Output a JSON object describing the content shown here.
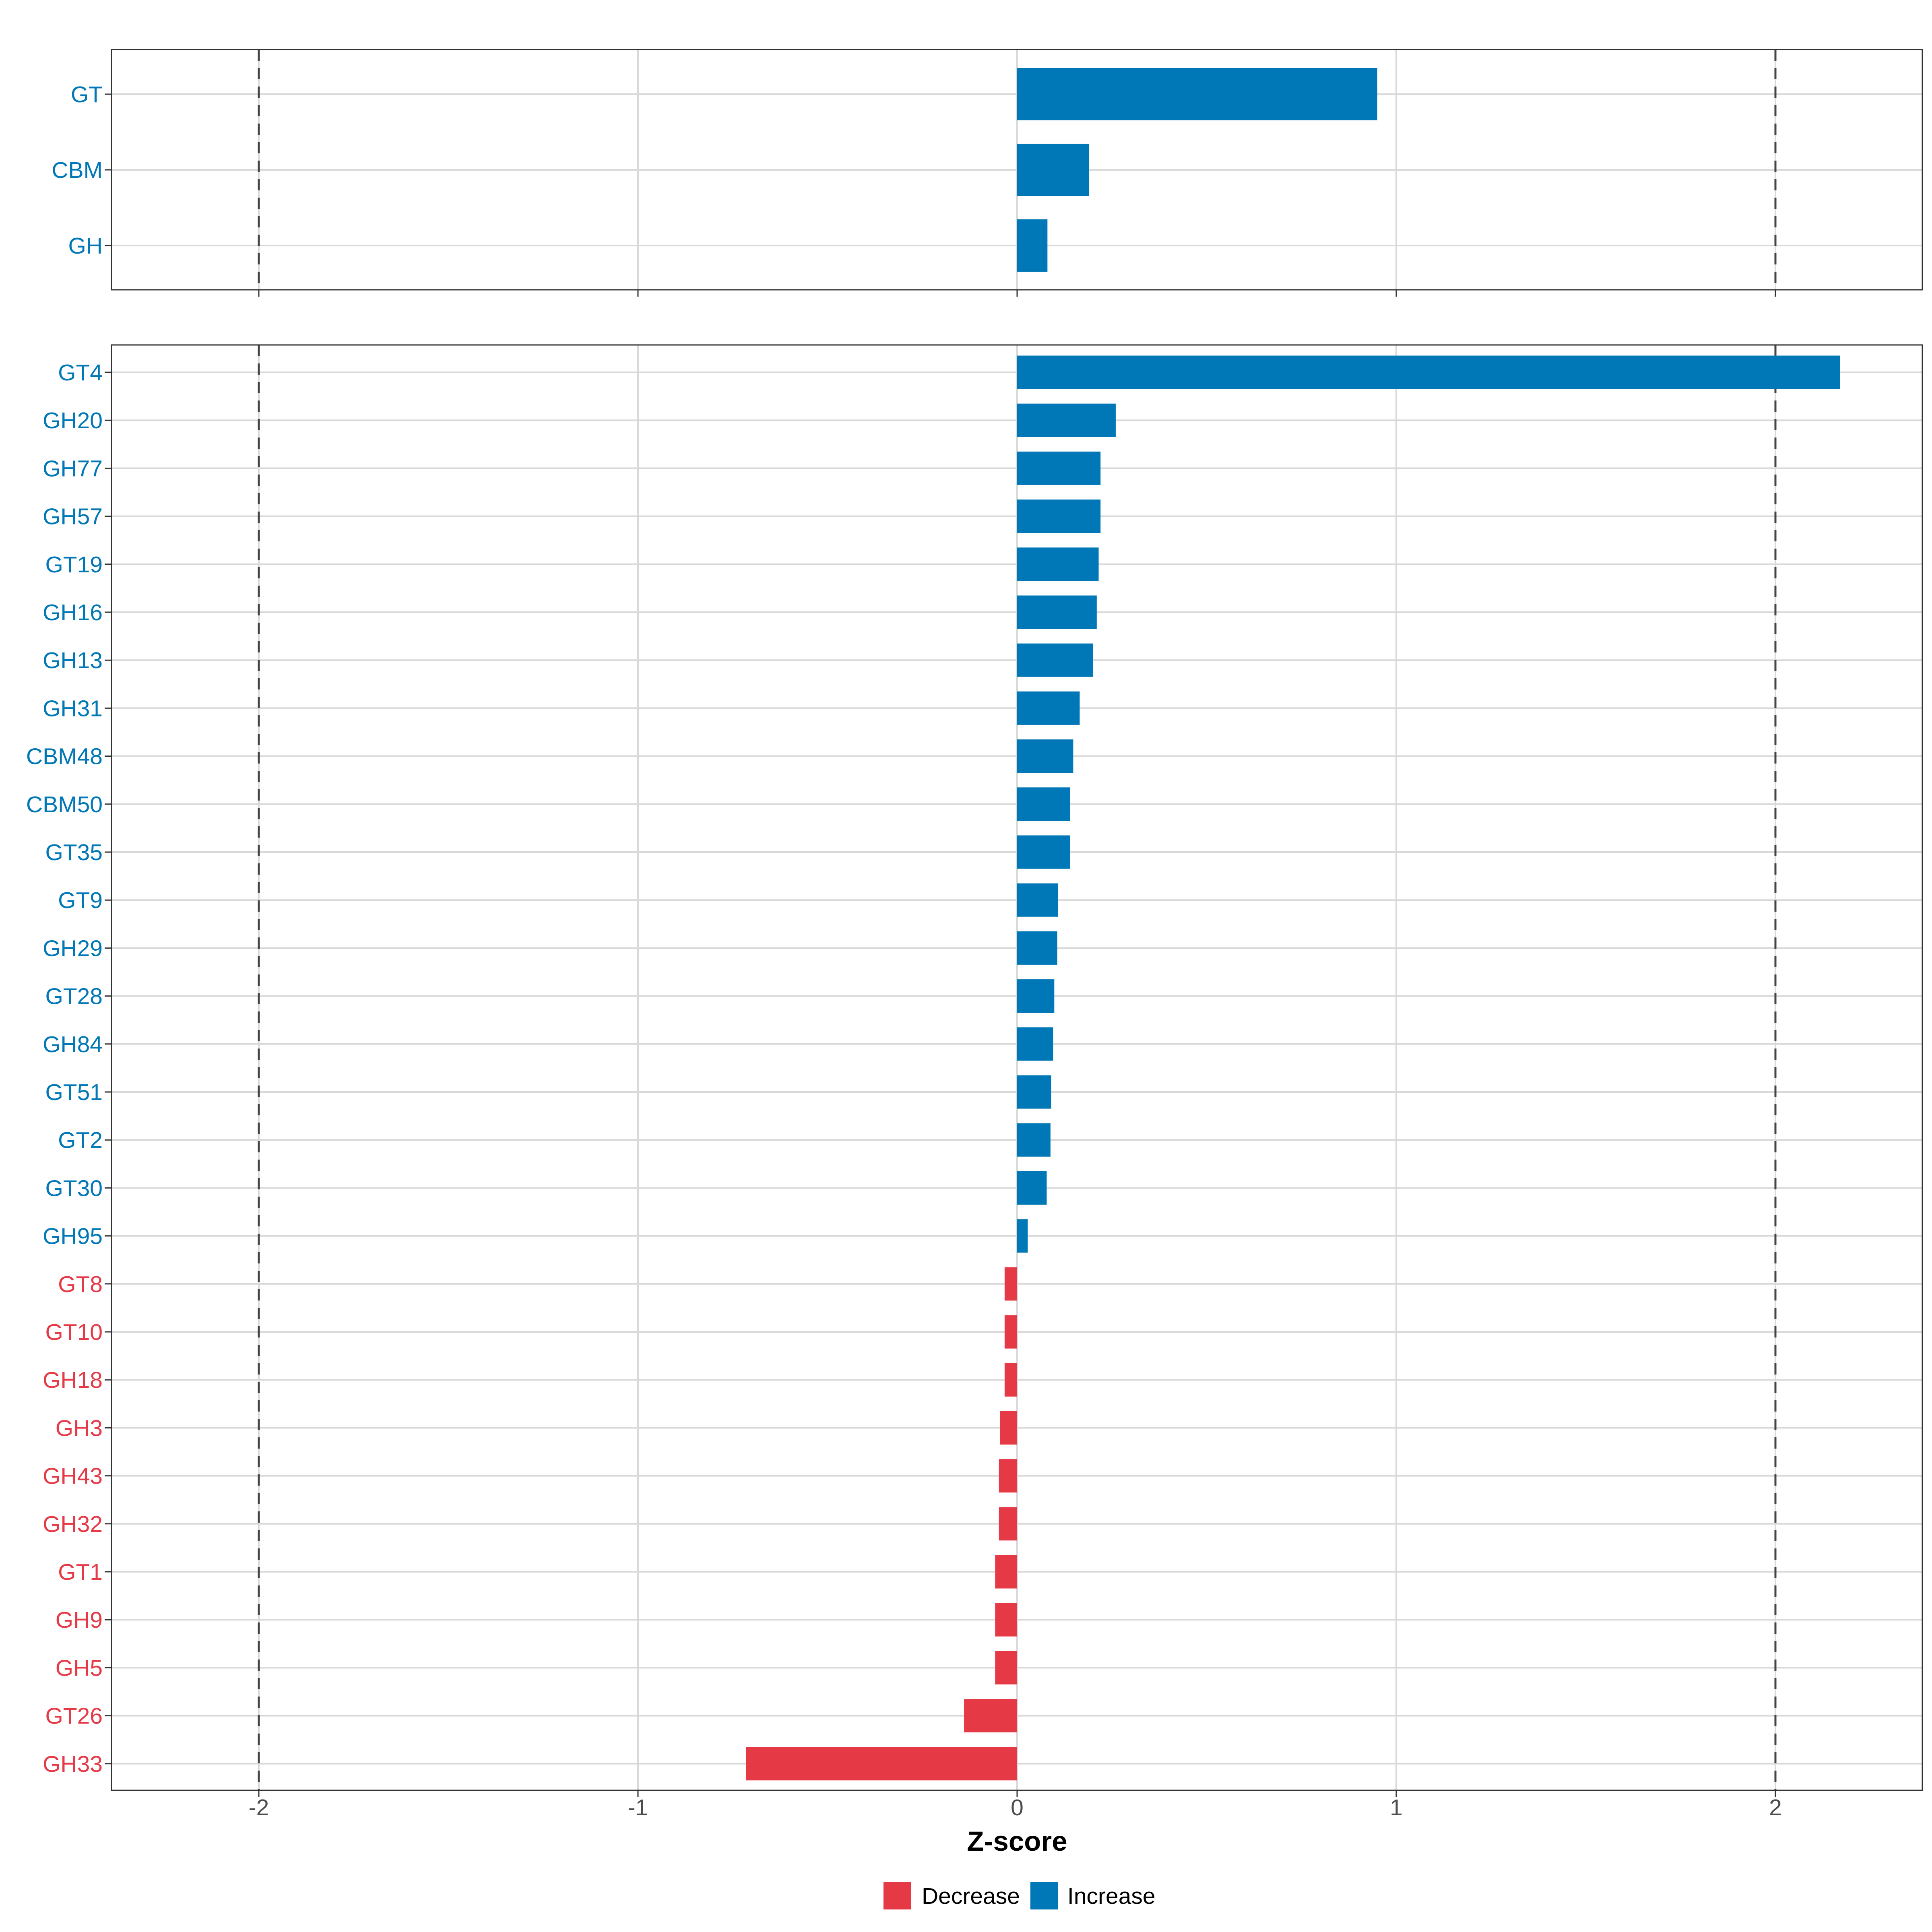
{
  "colors": {
    "increase": "#0077b6",
    "decrease": "#e63946"
  },
  "chart_data": {
    "type": "bar",
    "orientation": "horizontal",
    "xlabel": "Z-score",
    "xlim": [
      -2.39,
      2.39
    ],
    "x_ticks": [
      {
        "value": -2,
        "label": "-2"
      },
      {
        "value": -1,
        "label": "-1"
      },
      {
        "value": 0,
        "label": "0"
      },
      {
        "value": 1,
        "label": "1"
      },
      {
        "value": 2,
        "label": "2"
      }
    ],
    "reference_lines": [
      -2,
      2
    ],
    "grid": true,
    "legend": {
      "position": "bottom",
      "entries": [
        {
          "label": "Decrease",
          "key": "decrease"
        },
        {
          "label": "Increase",
          "key": "increase"
        }
      ]
    },
    "panels": [
      {
        "name": "summary",
        "categories": [
          "GT",
          "CBM",
          "GH"
        ],
        "values": [
          0.95,
          0.19,
          0.08
        ]
      },
      {
        "name": "families",
        "categories": [
          "GT4",
          "GH20",
          "GH77",
          "GH57",
          "GT19",
          "GH16",
          "GH13",
          "GH31",
          "CBM48",
          "CBM50",
          "GT35",
          "GT9",
          "GH29",
          "GT28",
          "GH84",
          "GT51",
          "GT2",
          "GT30",
          "GH95",
          "GT8",
          "GT10",
          "GH18",
          "GH3",
          "GH43",
          "GH32",
          "GT1",
          "GH9",
          "GH5",
          "GT26",
          "GH33"
        ],
        "values": [
          2.17,
          0.26,
          0.22,
          0.22,
          0.215,
          0.21,
          0.2,
          0.165,
          0.148,
          0.14,
          0.14,
          0.108,
          0.106,
          0.098,
          0.095,
          0.09,
          0.088,
          0.078,
          0.028,
          -0.033,
          -0.033,
          -0.033,
          -0.045,
          -0.048,
          -0.048,
          -0.058,
          -0.058,
          -0.058,
          -0.14,
          -0.715
        ]
      }
    ]
  }
}
